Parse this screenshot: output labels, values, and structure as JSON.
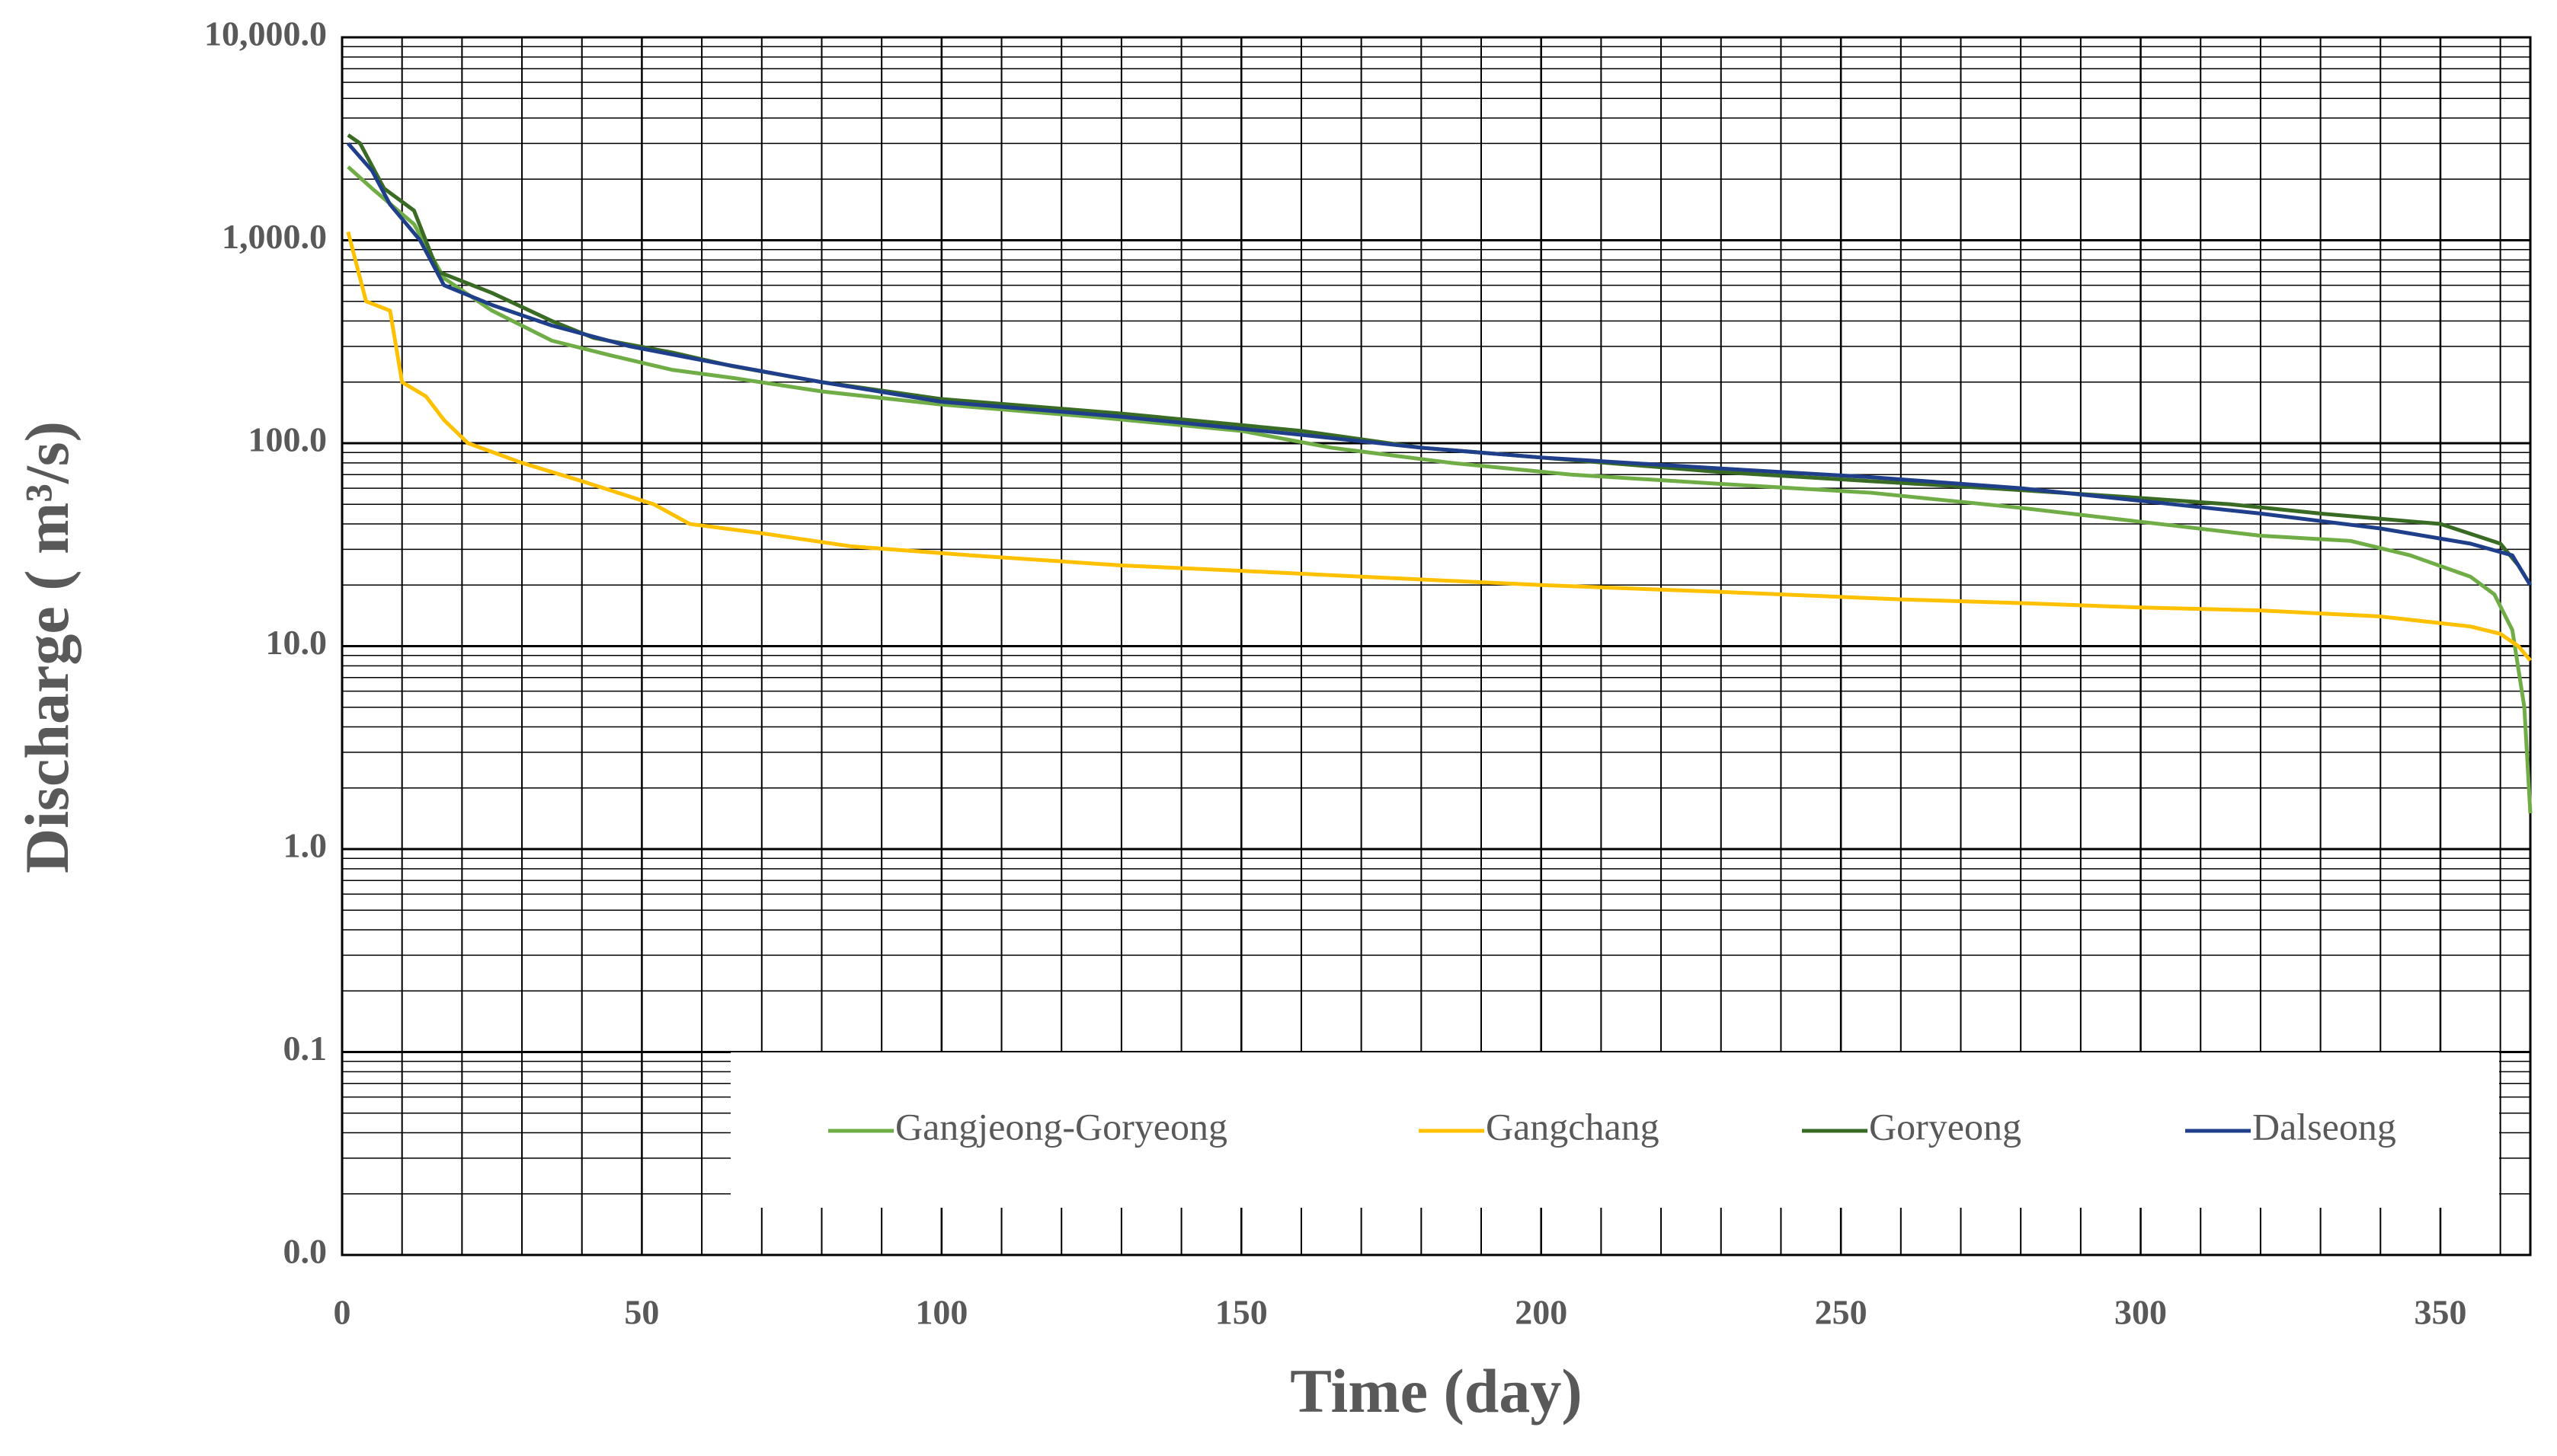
{
  "chart_data": {
    "type": "line",
    "y_label": "Discharge ( m³/s)",
    "x_label": "Time (day)",
    "xlim": [
      0,
      365
    ],
    "xticks": [
      0,
      50,
      100,
      150,
      200,
      250,
      300,
      350
    ],
    "x_minor_step": 10,
    "ylim": [
      0.01,
      10000
    ],
    "log_scale_y": true,
    "grid": true,
    "minor_grid": true,
    "yticks": [
      {
        "value": 0.01,
        "label": "0.0"
      },
      0.1,
      {
        "value": 1,
        "label": "1.0"
      },
      {
        "value": 10,
        "label": "10.0"
      },
      {
        "value": 100,
        "label": "100.0"
      },
      {
        "value": 1000,
        "label": "1,000.0"
      },
      {
        "value": 10000,
        "label": "10,000.0"
      }
    ],
    "legend": "bottom",
    "series": [
      {
        "name": "Gangjeong-Goryeong",
        "color": "#70ad47",
        "x": [
          1,
          5,
          12,
          17,
          25,
          35,
          45,
          55,
          65,
          80,
          100,
          125,
          150,
          165,
          185,
          205,
          230,
          255,
          280,
          300,
          320,
          335,
          345,
          355,
          359,
          362,
          364,
          365
        ],
        "values": [
          2300,
          1800,
          1200,
          650,
          450,
          320,
          270,
          230,
          210,
          180,
          155,
          135,
          115,
          95,
          80,
          70,
          63,
          57,
          48,
          41,
          35,
          33,
          28,
          22,
          18,
          12,
          5,
          1.5
        ]
      },
      {
        "name": "Gangchang",
        "color": "#ffc000",
        "x": [
          1,
          4,
          8,
          10,
          14,
          17,
          21,
          30,
          40,
          52,
          58,
          70,
          85,
          105,
          130,
          150,
          170,
          200,
          230,
          260,
          280,
          300,
          320,
          340,
          355,
          360,
          363,
          365
        ],
        "values": [
          1100,
          500,
          450,
          200,
          170,
          130,
          100,
          80,
          65,
          50,
          40,
          36,
          31,
          28,
          25,
          23.5,
          22,
          20,
          18.5,
          17,
          16.3,
          15.5,
          15,
          14,
          12.5,
          11.5,
          10,
          8.5
        ]
      },
      {
        "name": "Goryeong",
        "color": "#3a6b24",
        "x": [
          1,
          3,
          7,
          12,
          16,
          25,
          35,
          42,
          55,
          65,
          80,
          100,
          130,
          160,
          180,
          200,
          230,
          255,
          275,
          295,
          315,
          330,
          350,
          360,
          363,
          365
        ],
        "values": [
          3300,
          3000,
          1800,
          1400,
          700,
          550,
          400,
          330,
          280,
          240,
          200,
          165,
          140,
          115,
          95,
          85,
          72,
          65,
          60,
          55,
          50,
          45,
          40,
          32,
          25,
          20
        ]
      },
      {
        "name": "Dalseong",
        "color": "#203f8a",
        "x": [
          1,
          5,
          8,
          13,
          17,
          25,
          35,
          48,
          62,
          80,
          100,
          130,
          160,
          180,
          200,
          230,
          255,
          280,
          300,
          320,
          340,
          355,
          362,
          365
        ],
        "values": [
          3000,
          2200,
          1500,
          1000,
          600,
          480,
          380,
          300,
          250,
          200,
          160,
          135,
          110,
          95,
          85,
          75,
          68,
          60,
          52,
          45,
          38,
          32,
          28,
          20
        ]
      }
    ]
  }
}
